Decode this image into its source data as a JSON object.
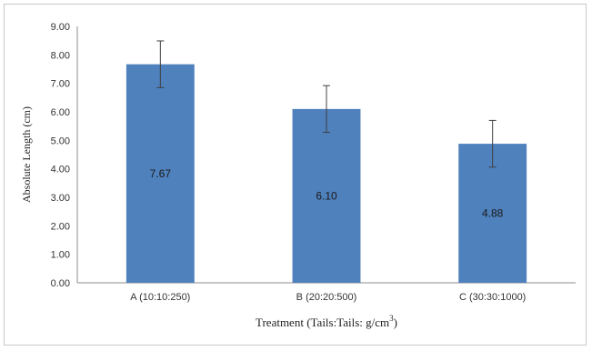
{
  "chart_data": {
    "type": "bar",
    "categories": [
      "A (10:10:250)",
      "B (20:20:500)",
      "C (30:30:1000)"
    ],
    "values": [
      7.67,
      6.1,
      4.88
    ],
    "value_labels": [
      "7.67",
      "6.10",
      "4.88"
    ],
    "error": [
      0.82,
      0.82,
      0.82
    ],
    "yticks": [
      "0.00",
      "1.00",
      "2.00",
      "3.00",
      "4.00",
      "5.00",
      "6.00",
      "7.00",
      "8.00",
      "9.00"
    ],
    "ylim": [
      0,
      9
    ],
    "ylabel": "Absolute Length (cm)",
    "xlabel": "Treatment (Tails:Tails: g/cm",
    "xlabel_sup": "3",
    "xlabel_end": ")",
    "grid": false,
    "bar_color": "#4f81bd",
    "error_color": "#404040"
  }
}
